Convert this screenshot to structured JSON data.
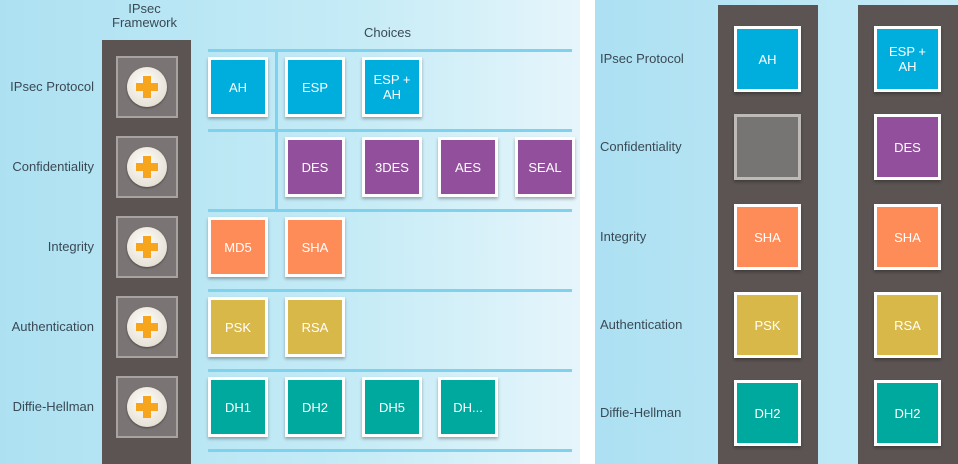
{
  "left": {
    "framework_header": "IPsec\nFramework",
    "choices_header": "Choices",
    "rows": [
      {
        "label": "IPsec Protocol",
        "color": "#00aede",
        "choices": [
          "AH",
          "ESP",
          "ESP +\nAH"
        ]
      },
      {
        "label": "Confidentiality",
        "color": "#92509c",
        "choices": [
          "DES",
          "3DES",
          "AES",
          "SEAL"
        ]
      },
      {
        "label": "Integrity",
        "color": "#fd8c59",
        "choices": [
          "MD5",
          "SHA"
        ]
      },
      {
        "label": "Authentication",
        "color": "#d9b84a",
        "choices": [
          "PSK",
          "RSA"
        ]
      },
      {
        "label": "Diffie-Hellman",
        "color": "#00a99e",
        "choices": [
          "DH1",
          "DH2",
          "DH5",
          "DH..."
        ]
      }
    ],
    "plus_icon": "plus-icon"
  },
  "right": {
    "labels": [
      "IPsec Protocol",
      "Confidentiality",
      "Integrity",
      "Authentication",
      "Diffie-Hellman"
    ],
    "columns": [
      [
        "AH",
        "",
        "SHA",
        "PSK",
        "DH2"
      ],
      [
        "ESP +\nAH",
        "DES",
        "SHA",
        "RSA",
        "DH2"
      ]
    ]
  }
}
